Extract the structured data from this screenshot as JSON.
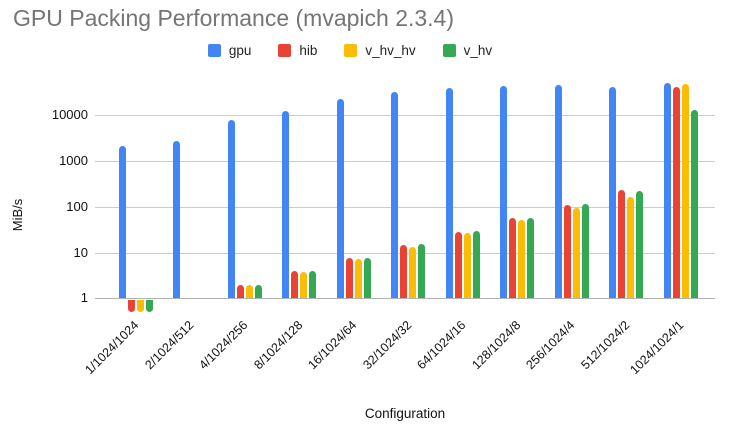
{
  "title": "GPU Packing Performance (mvapich 2.3.4)",
  "chart_data": {
    "type": "bar",
    "title": "GPU Packing Performance (mvapich 2.3.4)",
    "xlabel": "Configuration",
    "ylabel": "MiB/s",
    "y_scale": "log",
    "y_ticks": [
      1,
      10,
      100,
      1000,
      10000
    ],
    "ylim": [
      0.5,
      60000
    ],
    "grid": true,
    "legend_position": "top",
    "title_color": "#757575",
    "gridline_color": "#cccccc",
    "categories": [
      "1/1024/1024",
      "2/1024/512",
      "4/1024/256",
      "8/1024/128",
      "16/1024/64",
      "32/1024/32",
      "64/1024/16",
      "128/1024/8",
      "256/1024/4",
      "512/1024/2",
      "1024/1024/1"
    ],
    "series": [
      {
        "name": "gpu",
        "color": "#4285F4",
        "values": [
          2100,
          2700,
          8000,
          12500,
          22000,
          32000,
          40000,
          43000,
          45000,
          42000,
          50000
        ]
      },
      {
        "name": "hib",
        "color": "#EA4335",
        "values": [
          0.55,
          null,
          2.0,
          3.9,
          7.5,
          14.5,
          28,
          57,
          110,
          235,
          42000
        ]
      },
      {
        "name": "v_hv_hv",
        "color": "#FBBC04",
        "values": [
          0.55,
          null,
          1.95,
          3.8,
          7.3,
          13.5,
          27,
          51,
          95,
          165,
          48500
        ]
      },
      {
        "name": "v_hv",
        "color": "#34A853",
        "values": [
          0.55,
          null,
          2.0,
          3.9,
          7.7,
          15,
          29,
          57,
          115,
          225,
          13000
        ]
      }
    ]
  }
}
